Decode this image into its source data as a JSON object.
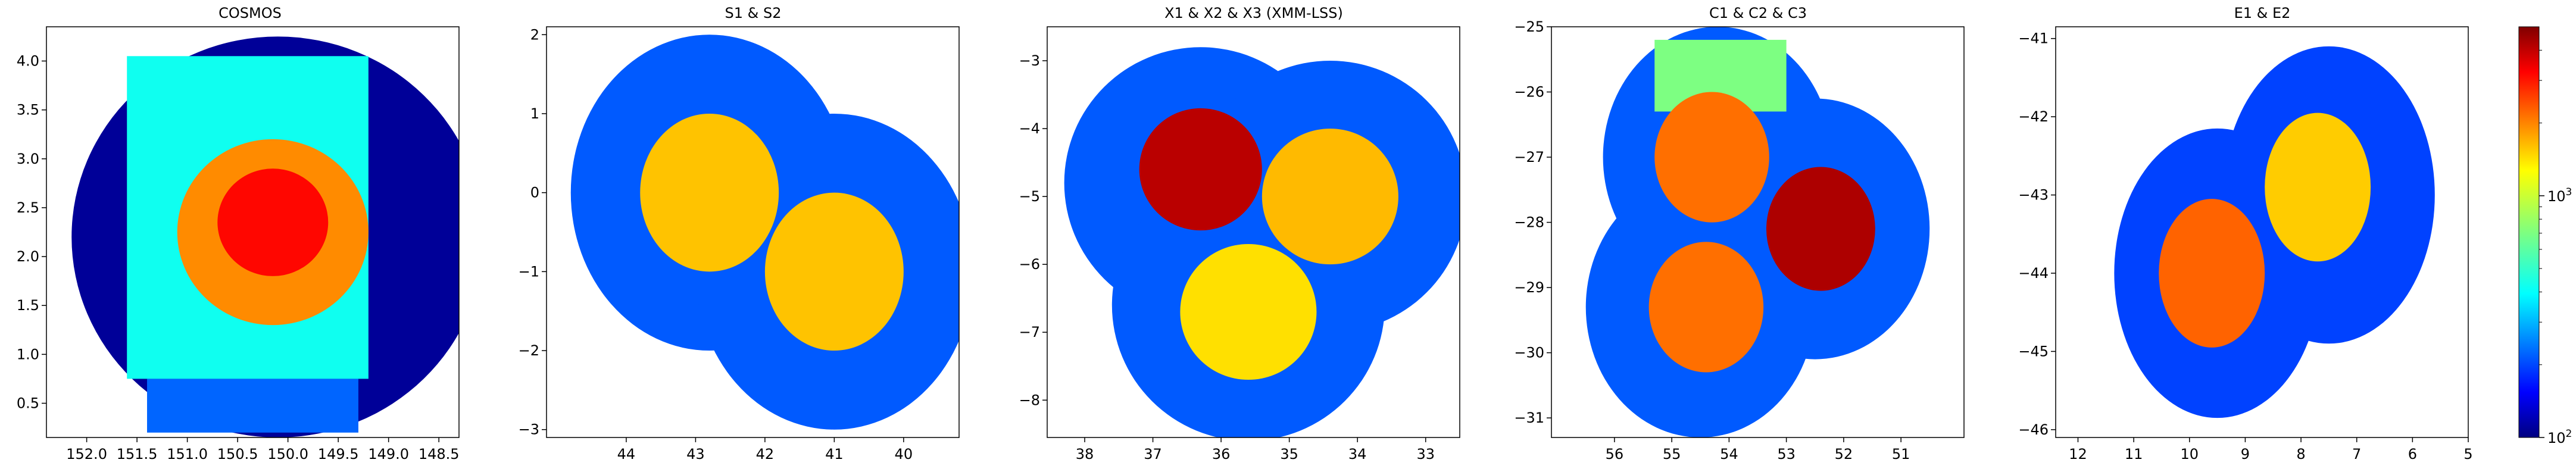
{
  "figure": {
    "colorbar": {
      "scale": "log",
      "range": [
        100,
        5000
      ],
      "colormap": "jet",
      "ticks": [
        {
          "value": 100,
          "base": "10",
          "exp": "2"
        },
        {
          "value": 1000,
          "base": "10",
          "exp": "3"
        }
      ]
    }
  },
  "chart_data": [
    {
      "type": "heatmap",
      "title": "COSMOS",
      "xlabel": "",
      "ylabel": "",
      "xlim": [
        152.4,
        148.3
      ],
      "ylim": [
        0.15,
        4.35
      ],
      "xticks": [
        152.0,
        151.5,
        151.0,
        150.5,
        150.0,
        149.5,
        149.0,
        148.5
      ],
      "xtick_labels": [
        "152.0",
        "151.5",
        "151.0",
        "150.5",
        "150.0",
        "149.5",
        "149.0",
        "148.5"
      ],
      "yticks": [
        0.5,
        1.0,
        1.5,
        2.0,
        2.5,
        3.0,
        3.5,
        4.0
      ],
      "ytick_labels": [
        "0.5",
        "1.0",
        "1.5",
        "2.0",
        "2.5",
        "3.0",
        "3.5",
        "4.0"
      ],
      "regions": [
        {
          "shape": "circle",
          "ra": 150.1,
          "dec": 2.2,
          "radius": 2.05,
          "value": 110
        },
        {
          "shape": "rect",
          "ra_min": 149.2,
          "ra_max": 151.6,
          "dec_min": 0.75,
          "dec_max": 4.05,
          "value": 460
        },
        {
          "shape": "rect",
          "ra_min": 149.3,
          "ra_max": 151.4,
          "dec_min": 0.2,
          "dec_max": 0.75,
          "value": 240
        },
        {
          "shape": "circle",
          "ra": 150.15,
          "dec": 2.25,
          "radius": 0.95,
          "value": 1800
        },
        {
          "shape": "circle",
          "ra": 150.15,
          "dec": 2.35,
          "radius": 0.55,
          "value": 3000
        }
      ]
    },
    {
      "type": "heatmap",
      "title": "S1 & S2",
      "xlabel": "",
      "ylabel": "",
      "xlim": [
        45.15,
        39.2
      ],
      "ylim": [
        -3.1,
        2.1
      ],
      "xticks": [
        44,
        43,
        42,
        41,
        40
      ],
      "xtick_labels": [
        "44",
        "43",
        "42",
        "41",
        "40"
      ],
      "yticks": [
        -3,
        -2,
        -1,
        0,
        1,
        2
      ],
      "ytick_labels": [
        "−3",
        "−2",
        "−1",
        "0",
        "1",
        "2"
      ],
      "regions": [
        {
          "shape": "circle",
          "ra": 42.8,
          "dec": 0.0,
          "radius": 2.0,
          "value": 230
        },
        {
          "shape": "circle",
          "ra": 41.0,
          "dec": -1.0,
          "radius": 2.0,
          "value": 230
        },
        {
          "shape": "circle",
          "ra": 42.8,
          "dec": 0.0,
          "radius": 1.0,
          "value": 1450
        },
        {
          "shape": "circle",
          "ra": 41.0,
          "dec": -1.0,
          "radius": 1.0,
          "value": 1450
        }
      ]
    },
    {
      "type": "heatmap",
      "title": "X1 & X2 & X3 (XMM-LSS)",
      "xlabel": "",
      "ylabel": "",
      "xlim": [
        38.55,
        32.5
      ],
      "ylim": [
        -8.55,
        -2.5
      ],
      "xticks": [
        38,
        37,
        36,
        35,
        34,
        33
      ],
      "xtick_labels": [
        "38",
        "37",
        "36",
        "35",
        "34",
        "33"
      ],
      "yticks": [
        -8,
        -7,
        -6,
        -5,
        -4,
        -3
      ],
      "ytick_labels": [
        "−8",
        "−7",
        "−6",
        "−5",
        "−4",
        "−3"
      ],
      "regions": [
        {
          "shape": "circle",
          "ra": 36.3,
          "dec": -4.8,
          "radius": 2.0,
          "value": 230
        },
        {
          "shape": "circle",
          "ra": 34.4,
          "dec": -5.0,
          "radius": 2.0,
          "value": 230
        },
        {
          "shape": "circle",
          "ra": 35.6,
          "dec": -6.6,
          "radius": 2.0,
          "value": 230
        },
        {
          "shape": "circle",
          "ra": 36.3,
          "dec": -4.6,
          "radius": 0.9,
          "value": 4000
        },
        {
          "shape": "circle",
          "ra": 34.4,
          "dec": -5.0,
          "radius": 1.0,
          "value": 1500
        },
        {
          "shape": "circle",
          "ra": 35.6,
          "dec": -6.7,
          "radius": 1.0,
          "value": 1300
        }
      ]
    },
    {
      "type": "heatmap",
      "title": "C1 & C2 & C3",
      "xlabel": "",
      "ylabel": "",
      "xlim": [
        57.1,
        49.9
      ],
      "ylim": [
        -31.3,
        -25.0
      ],
      "xticks": [
        56,
        55,
        54,
        53,
        52,
        51
      ],
      "xtick_labels": [
        "56",
        "55",
        "54",
        "53",
        "52",
        "51"
      ],
      "yticks": [
        -31,
        -30,
        -29,
        -28,
        -27,
        -26,
        -25
      ],
      "ytick_labels": [
        "−31",
        "−30",
        "−29",
        "−28",
        "−27",
        "−26",
        "−25"
      ],
      "regions": [
        {
          "shape": "circle",
          "ra": 54.2,
          "dec": -27.0,
          "radius": 2.0,
          "value": 230
        },
        {
          "shape": "circle",
          "ra": 52.5,
          "dec": -28.1,
          "radius": 2.0,
          "value": 230
        },
        {
          "shape": "circle",
          "ra": 54.5,
          "dec": -29.3,
          "radius": 2.0,
          "value": 230
        },
        {
          "shape": "rect",
          "ra_min": 53.0,
          "ra_max": 55.3,
          "dec_min": -26.3,
          "dec_max": -25.2,
          "value": 700
        },
        {
          "shape": "circle",
          "ra": 54.3,
          "dec": -27.0,
          "radius": 1.0,
          "value": 2000
        },
        {
          "shape": "circle",
          "ra": 54.4,
          "dec": -29.3,
          "radius": 1.0,
          "value": 2000
        },
        {
          "shape": "circle",
          "ra": 52.4,
          "dec": -28.1,
          "radius": 0.95,
          "value": 4200
        }
      ]
    },
    {
      "type": "heatmap",
      "title": "E1 & E2",
      "xlabel": "",
      "ylabel": "",
      "xlim": [
        12.4,
        5.0
      ],
      "ylim": [
        -46.1,
        -40.85
      ],
      "xticks": [
        12,
        11,
        10,
        9,
        8,
        7,
        6,
        5
      ],
      "xtick_labels": [
        "12",
        "11",
        "10",
        "9",
        "8",
        "7",
        "6",
        "5"
      ],
      "yticks": [
        -46,
        -45,
        -44,
        -43,
        -42,
        -41
      ],
      "ytick_labels": [
        "−46",
        "−45",
        "−44",
        "−43",
        "−42",
        "−41"
      ],
      "regions": [
        {
          "shape": "circle",
          "ra": 9.5,
          "dec": -44.0,
          "radius": 1.85,
          "value": 210
        },
        {
          "shape": "circle",
          "ra": 7.5,
          "dec": -43.0,
          "radius": 1.9,
          "value": 210
        },
        {
          "shape": "circle",
          "ra": 7.7,
          "dec": -42.9,
          "radius": 0.95,
          "value": 1400
        },
        {
          "shape": "circle",
          "ra": 9.6,
          "dec": -44.0,
          "radius": 0.95,
          "value": 2100
        }
      ]
    }
  ]
}
